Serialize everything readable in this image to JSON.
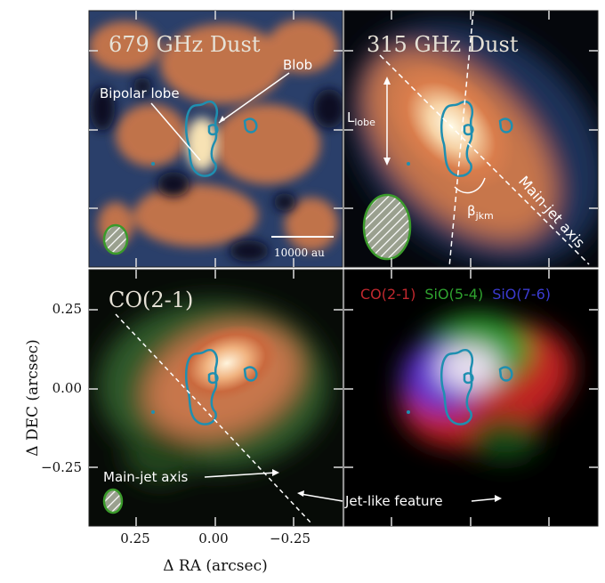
{
  "panels": [
    {
      "title": "679 GHz Dust",
      "annotations": [
        "Blob",
        "Bipolar lobe"
      ],
      "scale_bar": "10000 au"
    },
    {
      "title": "315 GHz Dust",
      "annotations": [
        {
          "symbol": "L",
          "subscript": "lobe"
        },
        {
          "symbol": "β",
          "subscript": "jkm"
        },
        "Main-jet axis"
      ]
    },
    {
      "title": "CO(2-1)",
      "annotations": [
        "Main-jet axis"
      ]
    },
    {
      "channels": [
        "CO(2-1)",
        "SiO(5-4)",
        "SiO(7-6)"
      ],
      "annotations": [
        "Jet-like feature"
      ]
    }
  ],
  "axes": {
    "y_label": "Δ DEC (arcsec)",
    "x_label": "Δ RA (arcsec)",
    "y_ticks": [
      "0.25",
      "0.00",
      "−0.25"
    ],
    "x_ticks": [
      "0.25",
      "0.00",
      "−0.25"
    ]
  }
}
